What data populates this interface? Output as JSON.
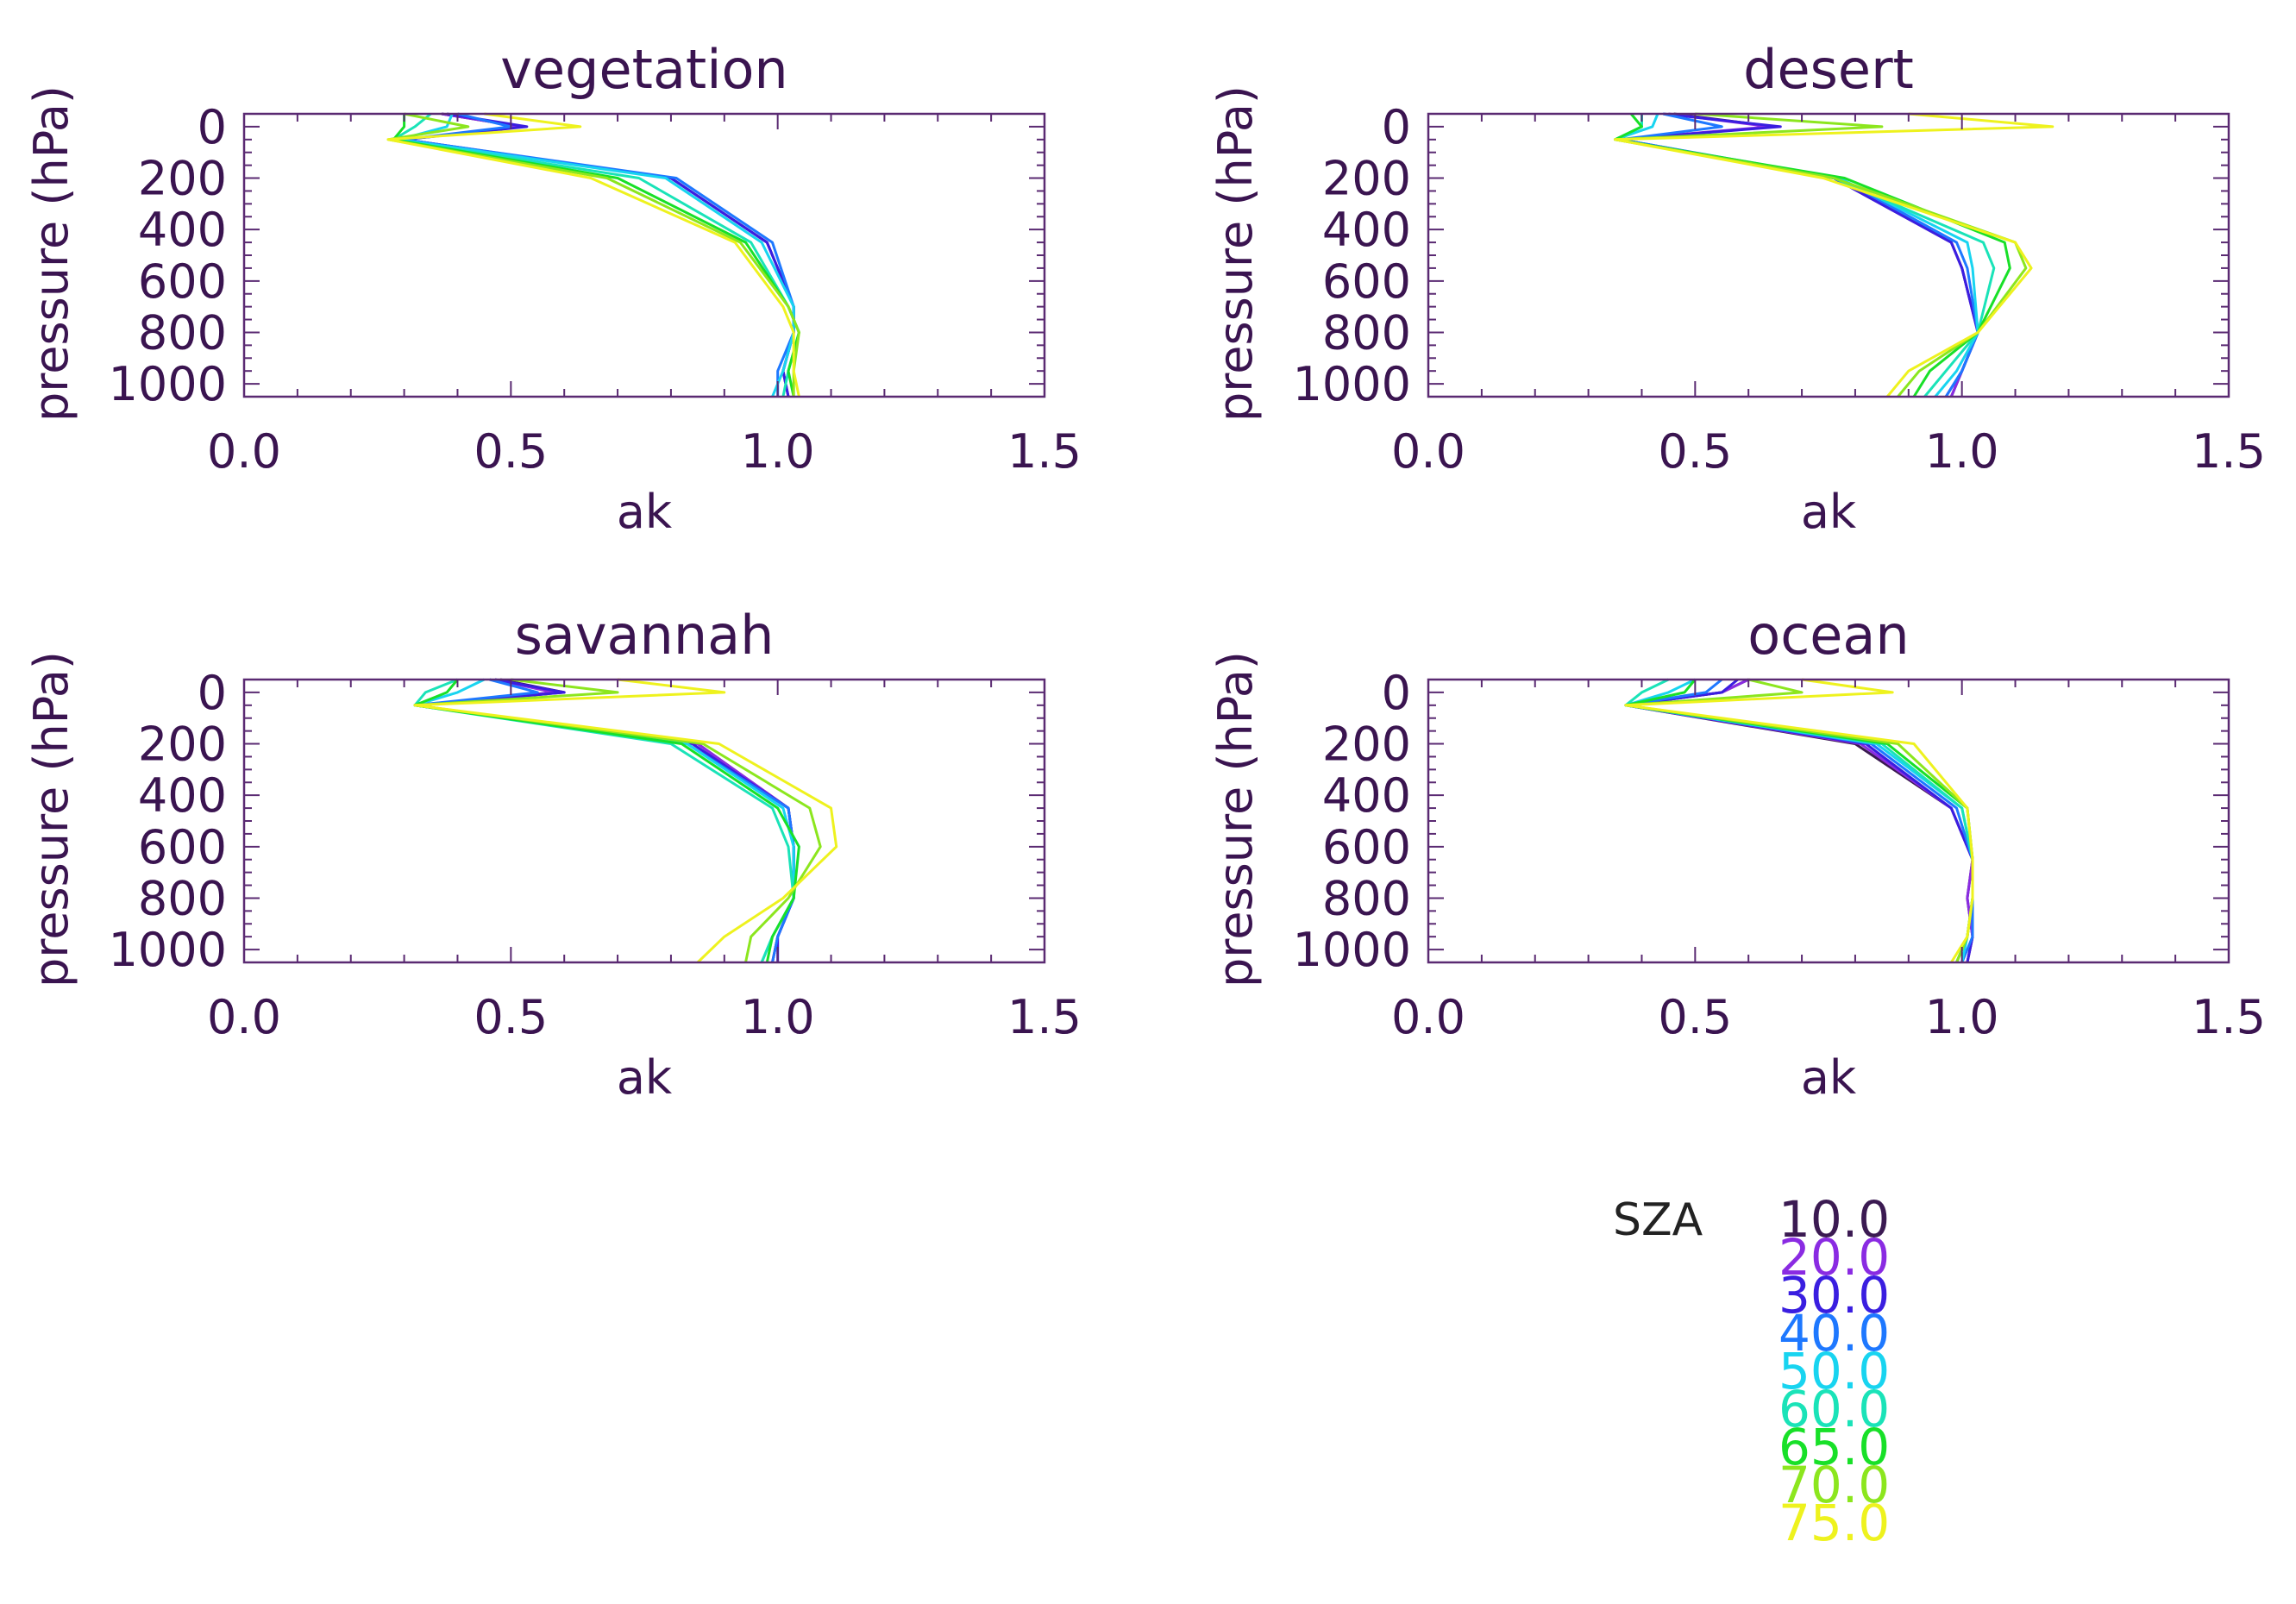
{
  "figure": {
    "legend": {
      "title": "SZA",
      "entries": [
        {
          "label": "10.0",
          "color": "#3b1a52"
        },
        {
          "label": "20.0",
          "color": "#8a2be2"
        },
        {
          "label": "30.0",
          "color": "#3a1ee0"
        },
        {
          "label": "40.0",
          "color": "#1e78ff"
        },
        {
          "label": "50.0",
          "color": "#18d4f0"
        },
        {
          "label": "60.0",
          "color": "#1ae3b8"
        },
        {
          "label": "65.0",
          "color": "#18e028"
        },
        {
          "label": "70.0",
          "color": "#8ce61e"
        },
        {
          "label": "75.0",
          "color": "#eef21e"
        }
      ]
    }
  },
  "chart_data": [
    {
      "type": "line",
      "title": "vegetation",
      "xlabel": "ak",
      "ylabel": "pressure (hPa)",
      "xlim": [
        0.0,
        1.5
      ],
      "ylim": [
        1050,
        -50
      ],
      "xticks": [
        "0.0",
        "0.5",
        "1.0",
        "1.5"
      ],
      "yticks": [
        "0",
        "200",
        "400",
        "600",
        "800",
        "1000"
      ],
      "pressure": [
        -50,
        0,
        50,
        200,
        450,
        700,
        800,
        950,
        1050
      ],
      "series": [
        {
          "name": "10.0",
          "values": [
            0.37,
            0.52,
            0.3,
            0.8,
            0.98,
            1.03,
            1.03,
            1.01,
            1.02
          ]
        },
        {
          "name": "20.0",
          "values": [
            0.37,
            0.52,
            0.3,
            0.8,
            0.98,
            1.03,
            1.03,
            1.01,
            1.02
          ]
        },
        {
          "name": "30.0",
          "values": [
            0.38,
            0.53,
            0.3,
            0.8,
            0.98,
            1.03,
            1.03,
            1.01,
            1.02
          ]
        },
        {
          "name": "40.0",
          "values": [
            0.4,
            0.5,
            0.3,
            0.81,
            0.99,
            1.03,
            1.03,
            1.0,
            1.0
          ]
        },
        {
          "name": "50.0",
          "values": [
            0.39,
            0.38,
            0.29,
            0.79,
            0.97,
            1.03,
            1.03,
            1.01,
            0.99
          ]
        },
        {
          "name": "60.0",
          "values": [
            0.35,
            0.32,
            0.28,
            0.74,
            0.95,
            1.02,
            1.04,
            1.02,
            1.01
          ]
        },
        {
          "name": "65.0",
          "values": [
            0.3,
            0.3,
            0.28,
            0.7,
            0.94,
            1.02,
            1.04,
            1.02,
            1.03
          ]
        },
        {
          "name": "70.0",
          "values": [
            0.3,
            0.42,
            0.27,
            0.68,
            0.93,
            1.02,
            1.04,
            1.03,
            1.03
          ]
        },
        {
          "name": "75.0",
          "values": [
            0.45,
            0.63,
            0.27,
            0.65,
            0.92,
            1.01,
            1.03,
            1.03,
            1.04
          ]
        }
      ]
    },
    {
      "type": "line",
      "title": "desert",
      "xlabel": "ak",
      "ylabel": "pressure (hPa)",
      "xlim": [
        0.0,
        1.5
      ],
      "ylim": [
        1050,
        -50
      ],
      "xticks": [
        "0.0",
        "0.5",
        "1.0",
        "1.5"
      ],
      "yticks": [
        "0",
        "200",
        "400",
        "600",
        "800",
        "1000"
      ],
      "pressure": [
        -50,
        0,
        50,
        200,
        450,
        550,
        800,
        950,
        1050
      ],
      "series": [
        {
          "name": "10.0",
          "values": [
            0.46,
            0.65,
            0.36,
            0.76,
            0.98,
            1.0,
            1.03,
            1.0,
            0.98
          ]
        },
        {
          "name": "20.0",
          "values": [
            0.45,
            0.64,
            0.36,
            0.76,
            0.98,
            1.0,
            1.03,
            1.0,
            0.98
          ]
        },
        {
          "name": "30.0",
          "values": [
            0.44,
            0.66,
            0.36,
            0.76,
            0.98,
            1.0,
            1.03,
            1.0,
            0.97
          ]
        },
        {
          "name": "40.0",
          "values": [
            0.44,
            0.55,
            0.36,
            0.77,
            0.99,
            1.01,
            1.03,
            1.0,
            0.97
          ]
        },
        {
          "name": "50.0",
          "values": [
            0.43,
            0.42,
            0.35,
            0.77,
            1.01,
            1.02,
            1.03,
            0.99,
            0.95
          ]
        },
        {
          "name": "60.0",
          "values": [
            0.4,
            0.4,
            0.35,
            0.76,
            1.04,
            1.06,
            1.03,
            0.97,
            0.93
          ]
        },
        {
          "name": "65.0",
          "values": [
            0.38,
            0.4,
            0.35,
            0.78,
            1.08,
            1.09,
            1.03,
            0.94,
            0.91
          ]
        },
        {
          "name": "70.0",
          "values": [
            0.5,
            0.85,
            0.35,
            0.76,
            1.1,
            1.12,
            1.03,
            0.92,
            0.88
          ]
        },
        {
          "name": "75.0",
          "values": [
            0.9,
            1.17,
            0.35,
            0.74,
            1.1,
            1.13,
            1.03,
            0.9,
            0.86
          ]
        }
      ]
    },
    {
      "type": "line",
      "title": "savannah",
      "xlabel": "ak",
      "ylabel": "pressure (hPa)",
      "xlim": [
        0.0,
        1.5
      ],
      "ylim": [
        1050,
        -50
      ],
      "xticks": [
        "0.0",
        "0.5",
        "1.0",
        "1.5"
      ],
      "yticks": [
        "0",
        "200",
        "400",
        "600",
        "800",
        "1000"
      ],
      "pressure": [
        -50,
        0,
        50,
        200,
        450,
        600,
        800,
        950,
        1050
      ],
      "series": [
        {
          "name": "10.0",
          "values": [
            0.48,
            0.6,
            0.32,
            0.85,
            1.02,
            1.03,
            1.03,
            1.0,
            0.99
          ]
        },
        {
          "name": "20.0",
          "values": [
            0.47,
            0.58,
            0.32,
            0.85,
            1.02,
            1.03,
            1.03,
            1.0,
            0.99
          ]
        },
        {
          "name": "30.0",
          "values": [
            0.47,
            0.6,
            0.32,
            0.84,
            1.02,
            1.03,
            1.03,
            1.0,
            1.0
          ]
        },
        {
          "name": "40.0",
          "values": [
            0.46,
            0.55,
            0.32,
            0.83,
            1.02,
            1.03,
            1.03,
            1.0,
            0.99
          ]
        },
        {
          "name": "50.0",
          "values": [
            0.45,
            0.4,
            0.32,
            0.83,
            1.01,
            1.03,
            1.03,
            0.99,
            0.97
          ]
        },
        {
          "name": "60.0",
          "values": [
            0.4,
            0.34,
            0.32,
            0.8,
            0.99,
            1.02,
            1.03,
            0.99,
            0.97
          ]
        },
        {
          "name": "65.0",
          "values": [
            0.4,
            0.38,
            0.32,
            0.82,
            1.0,
            1.04,
            1.03,
            0.99,
            0.98
          ]
        },
        {
          "name": "70.0",
          "values": [
            0.5,
            0.7,
            0.32,
            0.86,
            1.06,
            1.08,
            1.02,
            0.95,
            0.94
          ]
        },
        {
          "name": "75.0",
          "values": [
            0.7,
            0.9,
            0.32,
            0.89,
            1.1,
            1.11,
            1.01,
            0.9,
            0.85
          ]
        }
      ]
    },
    {
      "type": "line",
      "title": "ocean",
      "xlabel": "ak",
      "ylabel": "pressure (hPa)",
      "xlim": [
        0.0,
        1.5
      ],
      "ylim": [
        1050,
        -50
      ],
      "xticks": [
        "0.0",
        "0.5",
        "1.0",
        "1.5"
      ],
      "yticks": [
        "0",
        "200",
        "400",
        "600",
        "800",
        "1000"
      ],
      "pressure": [
        -50,
        0,
        50,
        200,
        450,
        650,
        800,
        950,
        1050
      ],
      "series": [
        {
          "name": "10.0",
          "values": [
            0.6,
            0.55,
            0.37,
            0.8,
            0.98,
            1.02,
            1.01,
            1.02,
            1.01
          ]
        },
        {
          "name": "20.0",
          "values": [
            0.6,
            0.55,
            0.37,
            0.81,
            0.98,
            1.02,
            1.01,
            1.02,
            1.01
          ]
        },
        {
          "name": "30.0",
          "values": [
            0.58,
            0.55,
            0.37,
            0.82,
            0.98,
            1.02,
            1.02,
            1.02,
            1.01
          ]
        },
        {
          "name": "40.0",
          "values": [
            0.55,
            0.52,
            0.37,
            0.83,
            0.99,
            1.02,
            1.02,
            1.02,
            1.0
          ]
        },
        {
          "name": "50.0",
          "values": [
            0.5,
            0.45,
            0.37,
            0.84,
            1.0,
            1.02,
            1.02,
            1.01,
            1.0
          ]
        },
        {
          "name": "60.0",
          "values": [
            0.45,
            0.4,
            0.37,
            0.85,
            1.0,
            1.02,
            1.02,
            1.01,
            0.99
          ]
        },
        {
          "name": "65.0",
          "values": [
            0.5,
            0.48,
            0.37,
            0.86,
            1.01,
            1.02,
            1.02,
            1.01,
            0.99
          ]
        },
        {
          "name": "70.0",
          "values": [
            0.6,
            0.7,
            0.37,
            0.88,
            1.01,
            1.02,
            1.02,
            1.01,
            0.99
          ]
        },
        {
          "name": "75.0",
          "values": [
            0.7,
            0.87,
            0.37,
            0.91,
            1.01,
            1.02,
            1.02,
            1.01,
            0.98
          ]
        }
      ]
    }
  ]
}
